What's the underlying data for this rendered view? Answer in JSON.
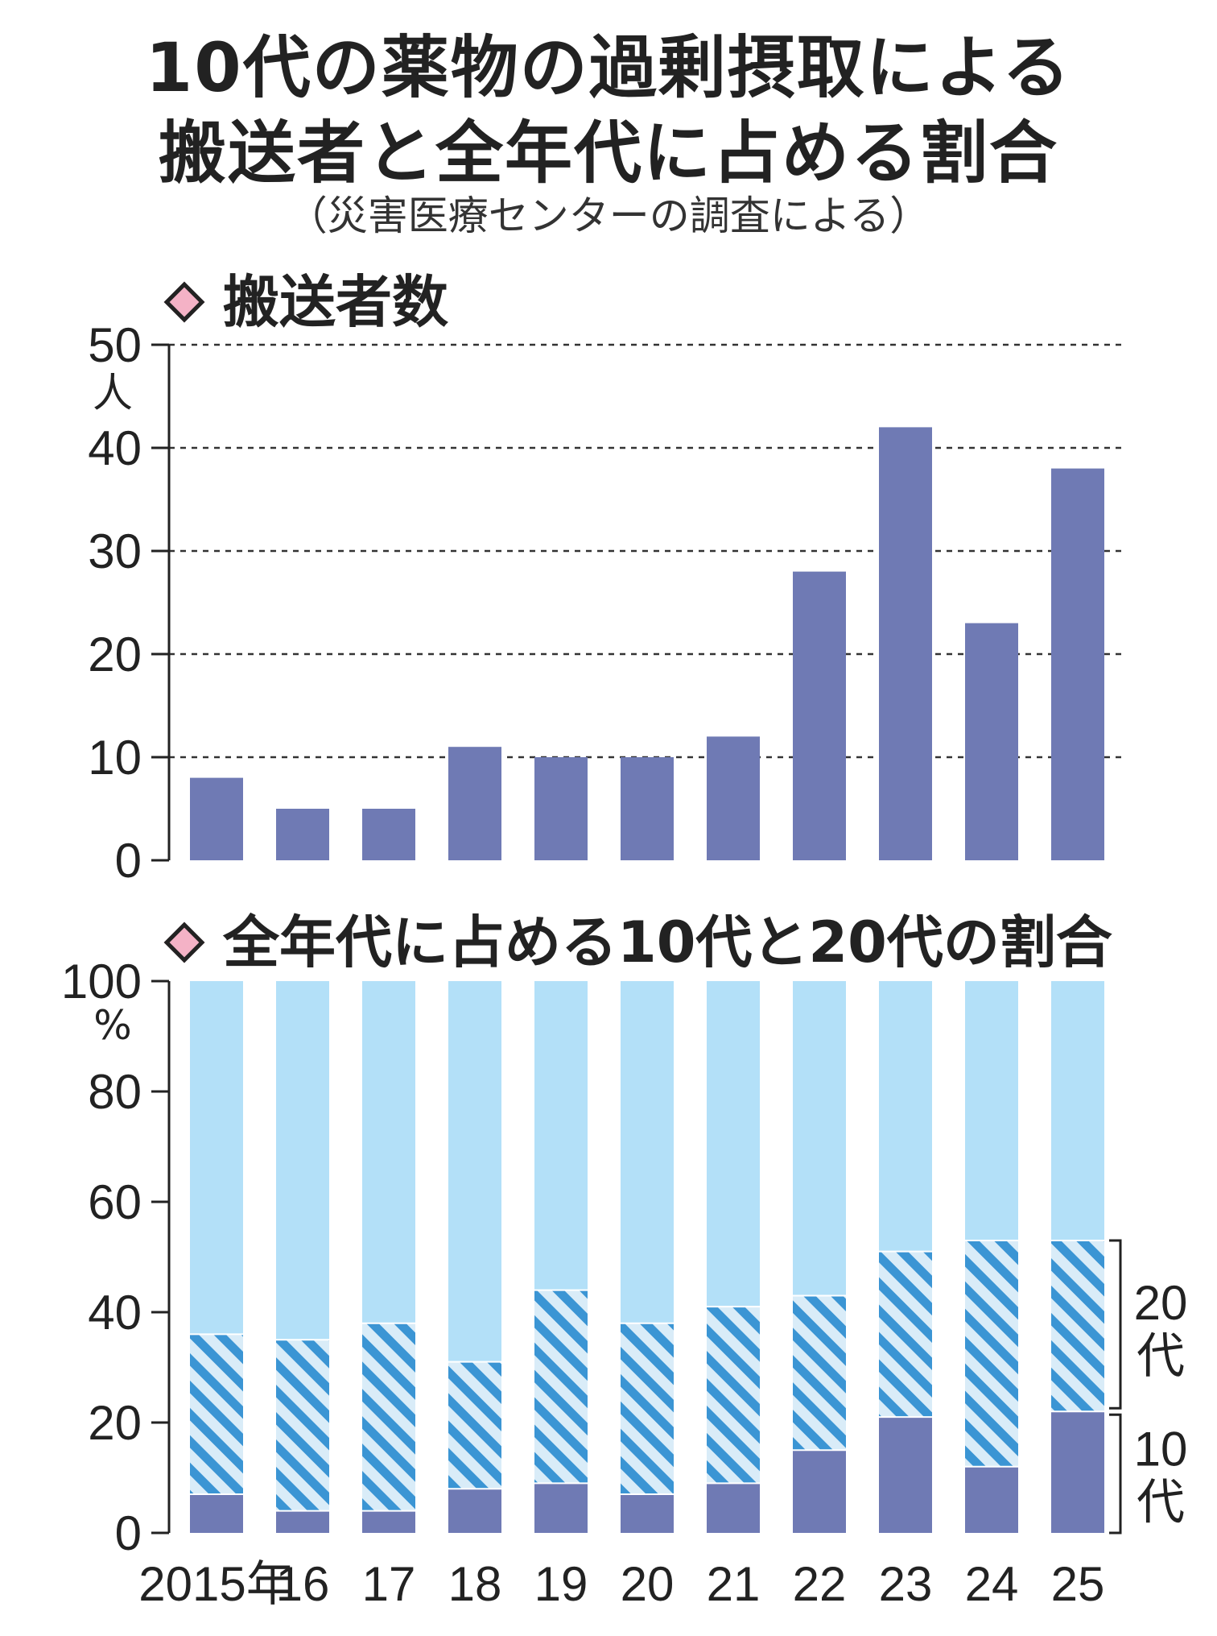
{
  "title": {
    "line1": "10代の薬物の過剰摂取による",
    "line2": "搬送者と全年代に占める割合",
    "subtitle": "（災害医療センターの調査による）"
  },
  "colors": {
    "bar": "#6f7ab4",
    "share_10s": "#6f7ab4",
    "share_20s_stripe": "#3b95d4",
    "share_20s_background": "#d9ecf8",
    "share_other": "#b3e0f8",
    "heading_diamond": "#f4b2c6"
  },
  "chart_data": [
    {
      "type": "bar",
      "heading": "搬送者数",
      "unit": "人",
      "categories": [
        "2015年",
        "16",
        "17",
        "18",
        "19",
        "20",
        "21",
        "22",
        "23",
        "24",
        "25"
      ],
      "values": [
        8,
        5,
        5,
        11,
        10,
        10,
        12,
        28,
        42,
        23,
        38
      ],
      "ylim": [
        0,
        50
      ],
      "yticks": [
        0,
        10,
        20,
        30,
        40,
        50
      ],
      "grid": "dashed"
    },
    {
      "type": "bar",
      "stacked": true,
      "heading": "全年代に占める10代と20代の割合",
      "unit": "%",
      "categories": [
        "2015年",
        "16",
        "17",
        "18",
        "19",
        "20",
        "21",
        "22",
        "23",
        "24",
        "25"
      ],
      "series": [
        {
          "name": "10代",
          "values": [
            7,
            4,
            4,
            8,
            9,
            7,
            9,
            15,
            21,
            12,
            22
          ]
        },
        {
          "name": "20代",
          "values": [
            29,
            31,
            34,
            23,
            35,
            31,
            32,
            28,
            30,
            41,
            31
          ]
        }
      ],
      "ylim": [
        0,
        100
      ],
      "yticks": [
        0,
        20,
        40,
        60,
        80,
        100
      ],
      "bracket_labels": {
        "upper": "20代",
        "lower": "10代"
      }
    }
  ]
}
